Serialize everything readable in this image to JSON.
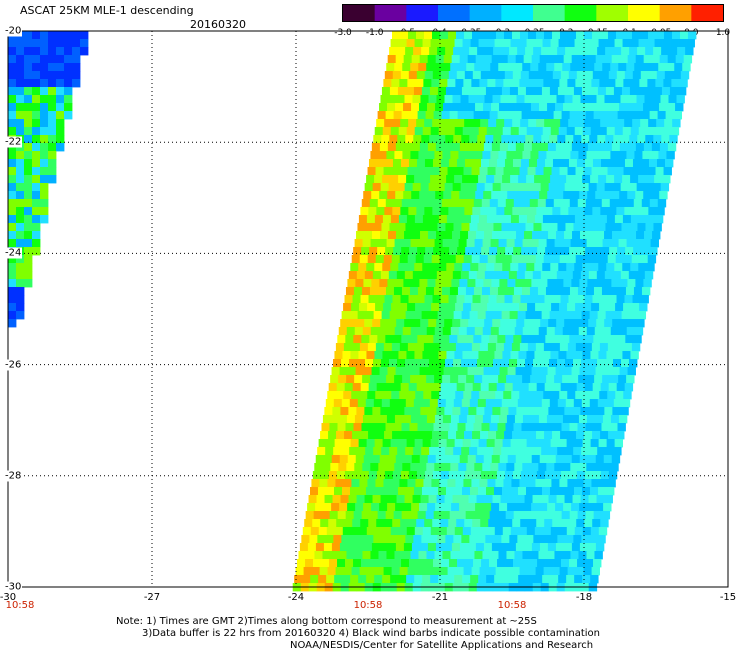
{
  "header": {
    "title": "ASCAT 25KM MLE-1 descending",
    "date": "20160320"
  },
  "colorbar": {
    "labels": [
      "-3.0",
      "-1.0",
      "-0.5",
      "-0.4",
      "-0.35",
      "-0.3",
      "-0.25",
      "-0.2",
      "-0.15",
      "-0.1",
      "-0.05",
      "0.0",
      "1.0"
    ],
    "colors": [
      "#3a0030",
      "#6a00a0",
      "#1a1aff",
      "#0070ff",
      "#00b0ff",
      "#00e8ff",
      "#40ff90",
      "#10ff10",
      "#a0ff00",
      "#ffff00",
      "#ffa000",
      "#ff2000"
    ]
  },
  "map": {
    "lat_labels": [
      "-20",
      "-22",
      "-24",
      "-26",
      "-28",
      "-30"
    ],
    "lon_labels": [
      "-30",
      "-27",
      "-24",
      "-21",
      "-18",
      "-15"
    ],
    "times": [
      "10:58",
      "10:58",
      "10:58"
    ],
    "lat_range": [
      -30,
      -20
    ],
    "lon_range": [
      -30,
      -15
    ],
    "grid": true,
    "grid_style": "dotted"
  },
  "notes": {
    "line1": "Note: 1) Times are GMT 2)Times along bottom correspond to measurement at ~25S",
    "line2": "3)Data buffer is 22 hrs from 20160320 4) Black wind barbs indicate possible contamination",
    "line3": "NOAA/NESDIS/Center for Satellite Applications and Research"
  }
}
